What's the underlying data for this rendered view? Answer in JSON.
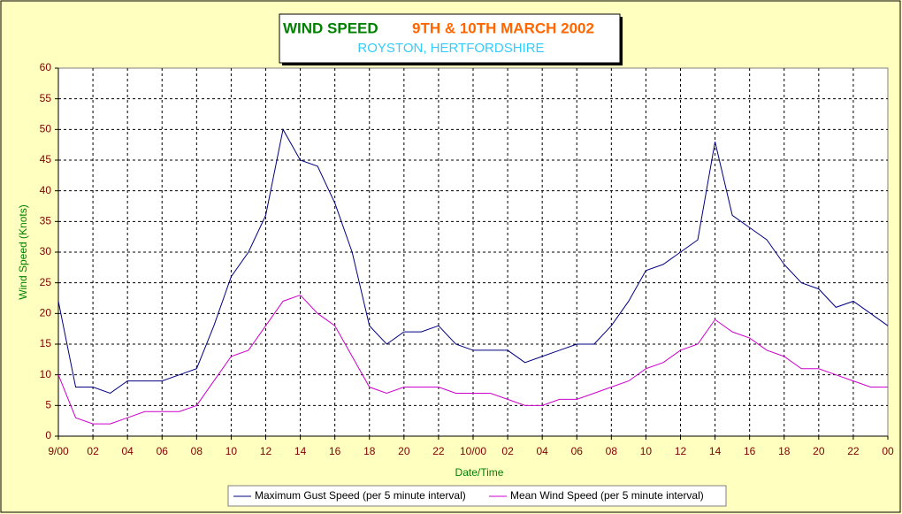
{
  "chart_data": {
    "type": "line",
    "title": [
      "WIND SPEED",
      "9TH & 10TH MARCH 2002"
    ],
    "title_colors": [
      "#008000",
      "#ff6600"
    ],
    "subtitle": "ROYSTON, HERTFORDSHIRE",
    "subtitle_color": "#33ccff",
    "x_label": "Date/Time",
    "y_label": "Wind Speed (Knots)",
    "x": [
      0,
      1,
      2,
      3,
      4,
      5,
      6,
      7,
      8,
      9,
      10,
      11,
      12,
      13,
      14,
      15,
      16,
      17,
      18,
      19,
      20,
      21,
      22,
      23,
      24,
      25,
      26,
      27,
      28,
      29,
      30,
      31,
      32,
      33,
      34,
      35,
      36,
      37,
      38,
      39,
      40,
      41,
      42,
      43,
      44,
      45,
      46,
      47,
      48
    ],
    "series": [
      {
        "name": "Maximum Gust Speed (per 5 minute interval)",
        "color": "#000080",
        "values": [
          22,
          8,
          8,
          7,
          9,
          9,
          9,
          10,
          11,
          18,
          26,
          30,
          36,
          50,
          45,
          44,
          38,
          30,
          18,
          15,
          17,
          17,
          18,
          15,
          14,
          14,
          14,
          12,
          13,
          14,
          15,
          15,
          18,
          22,
          27,
          28,
          30,
          32,
          48,
          36,
          34,
          32,
          28,
          25,
          24,
          21,
          22,
          20,
          18
        ]
      },
      {
        "name": "Mean Wind Speed (per 5 minute interval)",
        "color": "#cc00cc",
        "values": [
          10,
          3,
          2,
          2,
          3,
          4,
          4,
          4,
          5,
          9,
          13,
          14,
          18,
          22,
          23,
          20,
          18,
          13,
          8,
          7,
          8,
          8,
          8,
          7,
          7,
          7,
          6,
          5,
          5,
          6,
          6,
          7,
          8,
          9,
          11,
          12,
          14,
          15,
          19,
          17,
          16,
          14,
          13,
          11,
          11,
          10,
          9,
          8,
          8
        ]
      }
    ],
    "xlim": [
      0,
      48
    ],
    "xticks": [
      {
        "value": 0,
        "label": "9/00"
      },
      {
        "value": 2,
        "label": "02"
      },
      {
        "value": 4,
        "label": "04"
      },
      {
        "value": 6,
        "label": "06"
      },
      {
        "value": 8,
        "label": "08"
      },
      {
        "value": 10,
        "label": "10"
      },
      {
        "value": 12,
        "label": "12"
      },
      {
        "value": 14,
        "label": "14"
      },
      {
        "value": 16,
        "label": "16"
      },
      {
        "value": 18,
        "label": "18"
      },
      {
        "value": 20,
        "label": "20"
      },
      {
        "value": 22,
        "label": "22"
      },
      {
        "value": 24,
        "label": "10/00"
      },
      {
        "value": 26,
        "label": "02"
      },
      {
        "value": 28,
        "label": "04"
      },
      {
        "value": 30,
        "label": "06"
      },
      {
        "value": 32,
        "label": "08"
      },
      {
        "value": 34,
        "label": "10"
      },
      {
        "value": 36,
        "label": "12"
      },
      {
        "value": 38,
        "label": "14"
      },
      {
        "value": 40,
        "label": "16"
      },
      {
        "value": 42,
        "label": "18"
      },
      {
        "value": 44,
        "label": "20"
      },
      {
        "value": 46,
        "label": "22"
      },
      {
        "value": 48,
        "label": "00"
      }
    ],
    "ylim": [
      0,
      60
    ],
    "yticks": [
      0,
      5,
      10,
      15,
      20,
      25,
      30,
      35,
      40,
      45,
      50,
      55,
      60
    ],
    "grid": true
  }
}
